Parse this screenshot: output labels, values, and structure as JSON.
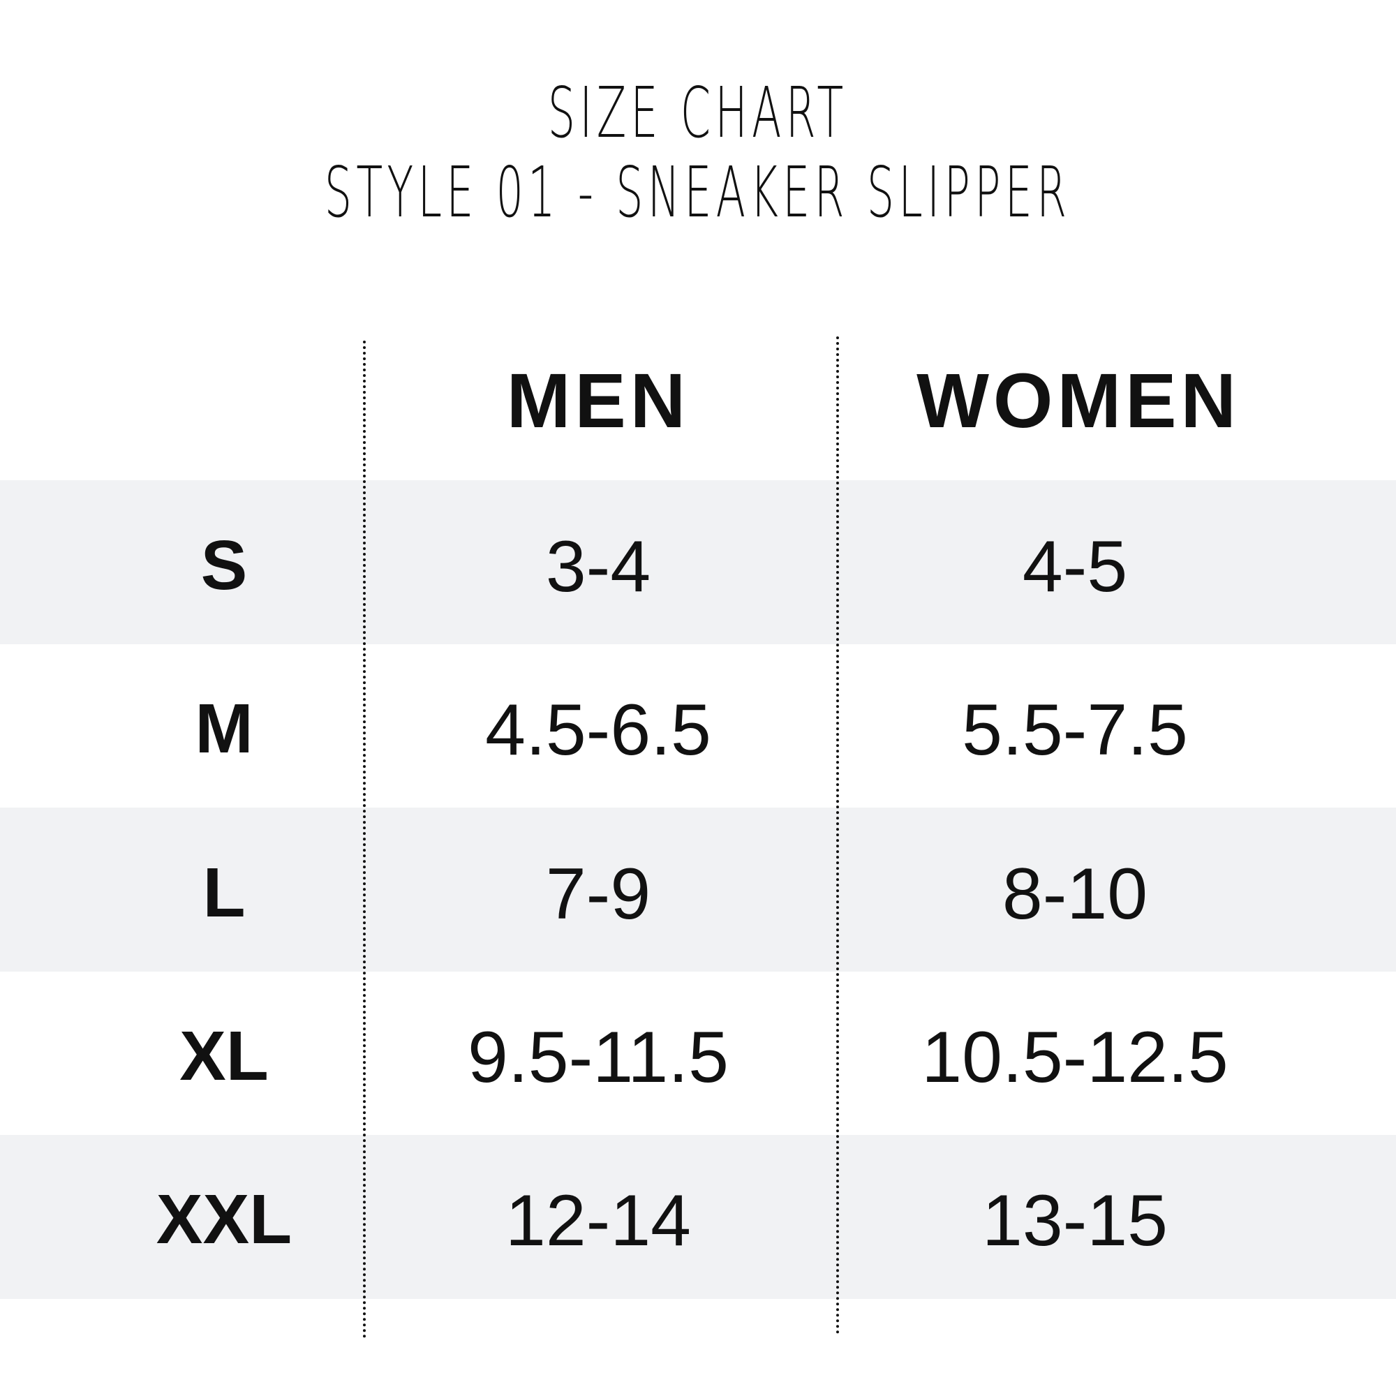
{
  "title": {
    "line1": "SIZE CHART",
    "line2": "STYLE 01 - SNEAKER SLIPPER"
  },
  "columns": [
    "MEN",
    "WOMEN"
  ],
  "rows": [
    {
      "size": "S",
      "men": "3-4",
      "women": "4-5"
    },
    {
      "size": "M",
      "men": "4.5-6.5",
      "women": "5.5-7.5"
    },
    {
      "size": "L",
      "men": "7-9",
      "women": "8-10"
    },
    {
      "size": "XL",
      "men": "9.5-11.5",
      "women": "10.5-12.5"
    },
    {
      "size": "XXL",
      "men": "12-14",
      "women": "13-15"
    }
  ],
  "colors": {
    "band": "#f1f2f4",
    "text": "#111111"
  }
}
